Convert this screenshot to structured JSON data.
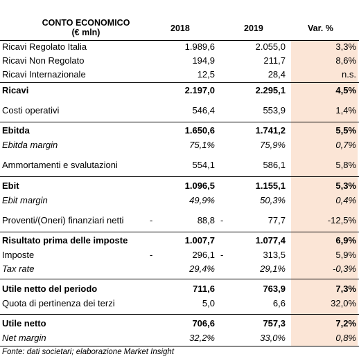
{
  "header": {
    "title_line1": "CONTO ECONOMICO",
    "title_line2": "(€ mln)",
    "col_2018": "2018",
    "col_2019": "2019",
    "col_var": "Var. %"
  },
  "rows": [
    {
      "label": "Ricavi Regolato Italia",
      "v2018": "1.989,6",
      "v2019": "2.055,0",
      "var": "3,3%"
    },
    {
      "label": "Ricavi Non Regolato",
      "v2018": "194,9",
      "v2019": "211,7",
      "var": "8,6%"
    },
    {
      "label": "Ricavi Internazionale",
      "v2018": "12,5",
      "v2019": "28,4",
      "var": "n.s."
    },
    {
      "label": "Ricavi",
      "v2018": "2.197,0",
      "v2019": "2.295,1",
      "var": "4,5%"
    },
    {
      "label": "Costi operativi",
      "v2018": "546,4",
      "v2019": "553,9",
      "var": "1,4%"
    },
    {
      "label": "Ebitda",
      "v2018": "1.650,6",
      "v2019": "1.741,2",
      "var": "5,5%"
    },
    {
      "label": "Ebitda margin",
      "v2018": "75,1%",
      "v2019": "75,9%",
      "var": "0,7%"
    },
    {
      "label": "Ammortamenti e svalutazioni",
      "v2018": "554,1",
      "v2019": "586,1",
      "var": "5,8%"
    },
    {
      "label": "Ebit",
      "v2018": "1.096,5",
      "v2019": "1.155,1",
      "var": "5,3%"
    },
    {
      "label": "Ebit margin",
      "v2018": "49,9%",
      "v2019": "50,3%",
      "var": "0,4%"
    },
    {
      "label": "Proventi/(Oneri) finanziari netti",
      "m2018": "-",
      "v2018": "88,8",
      "m2019": "-",
      "v2019": "77,7",
      "var": "-12,5%"
    },
    {
      "label": "Risultato prima delle imposte",
      "v2018": "1.007,7",
      "v2019": "1.077,4",
      "var": "6,9%"
    },
    {
      "label": "Imposte",
      "m2018": "-",
      "v2018": "296,1",
      "m2019": "-",
      "v2019": "313,5",
      "var": "5,9%"
    },
    {
      "label": "Tax rate",
      "v2018": "29,4%",
      "v2019": "29,1%",
      "var": "-0,3%"
    },
    {
      "label": "Utile netto del periodo",
      "v2018": "711,6",
      "v2019": "763,9",
      "var": "7,3%"
    },
    {
      "label": "Quota di pertinenza dei terzi",
      "v2018": "5,0",
      "v2019": "6,6",
      "var": "32,0%"
    },
    {
      "label": "Utile netto",
      "v2018": "706,6",
      "v2019": "757,3",
      "var": "7,2%"
    },
    {
      "label": "Net margin",
      "v2018": "32,2%",
      "v2019": "33,0%",
      "var": "0,8%"
    }
  ],
  "footer": "Fonte: dati societari; elaborazione Market Insight"
}
